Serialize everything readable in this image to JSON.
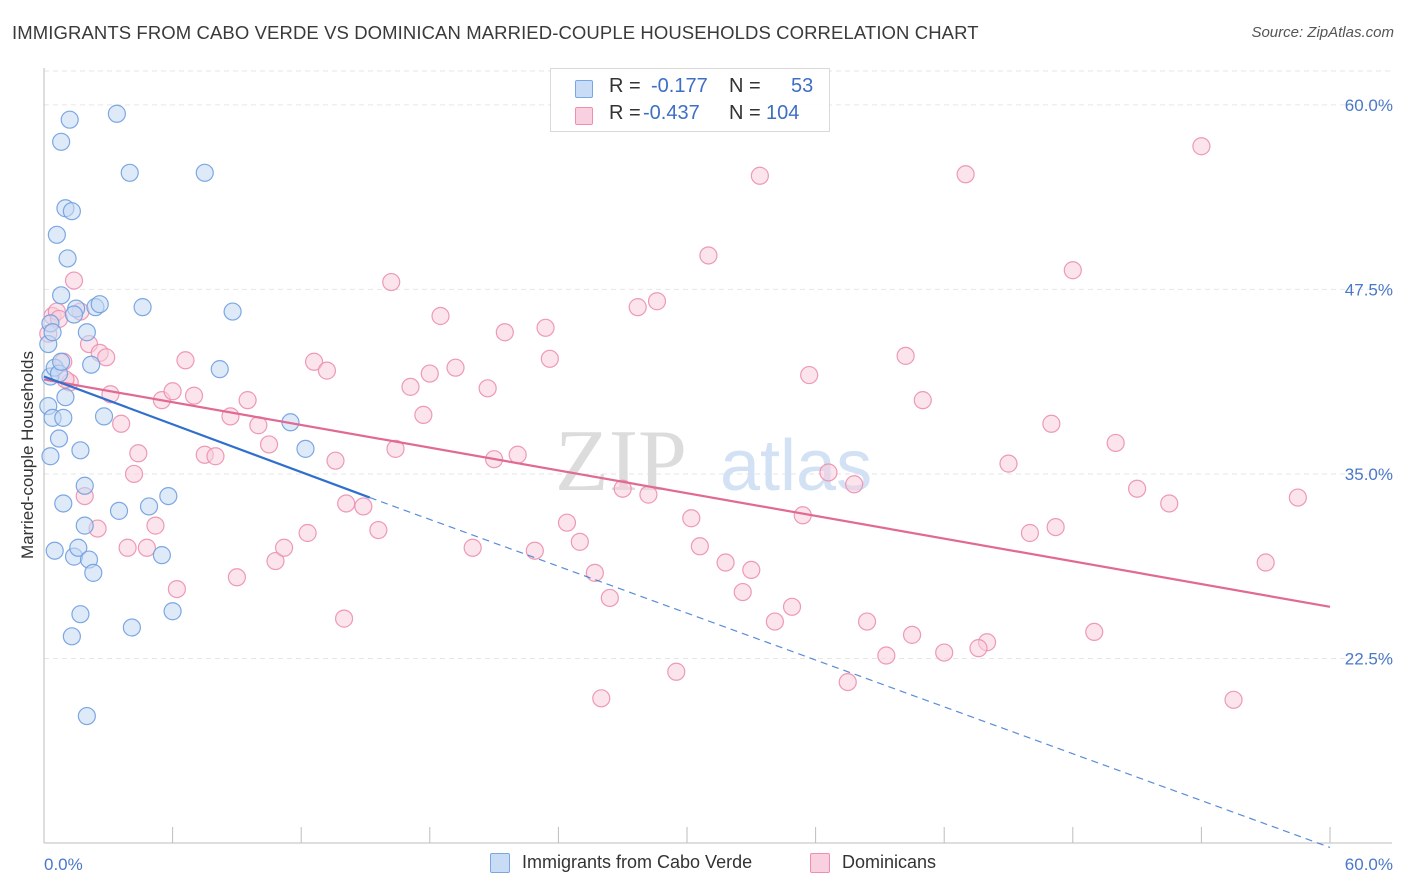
{
  "title": "IMMIGRANTS FROM CABO VERDE VS DOMINICAN MARRIED-COUPLE HOUSEHOLDS CORRELATION CHART",
  "source": "Source: ZipAtlas.com",
  "watermark": {
    "zip": "ZIP",
    "atlas": "atlas"
  },
  "stats": {
    "rows": [
      {
        "r_label": "R =",
        "r_value": "-0.177",
        "n_label": "N =",
        "n_value": "53",
        "color": "#7aa6e6"
      },
      {
        "r_label": "R =",
        "r_value": "-0.437",
        "n_label": "N =",
        "n_value": "104",
        "color": "#ef8fb0"
      }
    ]
  },
  "legend": {
    "items": [
      {
        "label": "Immigrants from Cabo Verde",
        "color": "#7aa6e6"
      },
      {
        "label": "Dominicans",
        "color": "#ef8fb0"
      }
    ]
  },
  "colors": {
    "blue": "#6f9ee0",
    "blue_fill": "#c5d8f4",
    "blue_line": "#2f6fce",
    "pink": "#ec8fae",
    "pink_fill": "#f8cddd",
    "pink_line": "#e06a94",
    "tick": "#4a78c8",
    "grid": "#e6e6e6"
  },
  "chart_data": {
    "type": "scatter",
    "title": "IMMIGRANTS FROM CABO VERDE VS DOMINICAN MARRIED-COUPLE HOUSEHOLDS CORRELATION CHART",
    "xlabel": "",
    "ylabel": "Married-couple Households",
    "xlim": [
      0,
      60
    ],
    "ylim": [
      10,
      62.5
    ],
    "x_tick_labels": [
      "0.0%",
      "60.0%"
    ],
    "y_ticks": [
      22.5,
      35.0,
      47.5,
      60.0
    ],
    "y_tick_labels": [
      "22.5%",
      "35.0%",
      "47.5%",
      "60.0%"
    ],
    "grid": true,
    "series": [
      {
        "name": "Immigrants from Cabo Verde",
        "color": "#6f9ee0",
        "x": [
          0.2,
          0.3,
          0.4,
          0.3,
          0.5,
          0.2,
          0.3,
          0.4,
          0.7,
          0.8,
          0.6,
          1.0,
          1.2,
          1.1,
          0.9,
          0.8,
          1.0,
          0.5,
          0.7,
          0.9,
          1.4,
          1.6,
          1.3,
          1.9,
          2.1,
          2.3,
          3.4,
          4.0,
          7.5,
          1.5,
          2.0,
          2.2,
          2.4,
          2.6,
          1.7,
          1.9,
          1.3,
          4.9,
          5.8,
          4.6,
          5.5,
          6.0,
          8.8,
          8.2,
          11.5,
          12.2,
          3.5,
          1.7,
          2.0,
          2.8,
          4.1,
          1.4,
          0.8
        ],
        "y": [
          43.8,
          45.2,
          44.6,
          41.6,
          42.2,
          39.6,
          36.2,
          38.8,
          41.8,
          57.5,
          51.2,
          53.0,
          59.0,
          49.6,
          38.8,
          42.6,
          40.2,
          29.8,
          37.4,
          33.0,
          29.4,
          30.0,
          24.0,
          31.5,
          29.2,
          28.3,
          59.4,
          55.4,
          55.4,
          46.2,
          44.6,
          42.4,
          46.3,
          46.5,
          36.6,
          34.2,
          52.8,
          32.8,
          33.5,
          46.3,
          29.5,
          25.7,
          46.0,
          42.1,
          38.5,
          36.7,
          32.5,
          25.5,
          18.6,
          38.9,
          24.6,
          45.8,
          47.1
        ]
      },
      {
        "name": "Dominicans",
        "color": "#ec8fae",
        "x": [
          0.2,
          0.4,
          0.6,
          0.7,
          0.9,
          1.2,
          1.4,
          1.7,
          2.1,
          2.6,
          2.9,
          3.1,
          3.6,
          4.2,
          4.4,
          5.2,
          5.5,
          6.0,
          6.6,
          7.0,
          7.5,
          8.0,
          8.7,
          9.5,
          10.0,
          10.8,
          11.2,
          12.3,
          12.6,
          13.2,
          13.6,
          14.1,
          14.9,
          15.6,
          16.4,
          17.1,
          17.7,
          18.5,
          19.2,
          20.0,
          20.7,
          21.5,
          22.1,
          22.9,
          23.6,
          24.4,
          25.0,
          25.7,
          26.4,
          27.0,
          27.7,
          28.6,
          29.5,
          30.2,
          31.0,
          31.8,
          32.6,
          33.4,
          34.1,
          34.9,
          35.7,
          36.6,
          37.5,
          38.4,
          39.3,
          40.2,
          41.0,
          42.0,
          43.0,
          44.0,
          45.0,
          46.0,
          47.0,
          48.0,
          49.0,
          50.0,
          51.0,
          52.5,
          54.0,
          55.5,
          57.0,
          58.5,
          14.0,
          9.0,
          6.2,
          3.9,
          2.5,
          1.9,
          10.5,
          16.2,
          18.0,
          21.0,
          23.4,
          26.0,
          28.2,
          30.6,
          33.0,
          35.4,
          37.8,
          40.5,
          43.6,
          47.2,
          1.0,
          4.8
        ],
        "y": [
          44.5,
          45.7,
          46.0,
          45.5,
          42.6,
          41.2,
          48.1,
          46.0,
          43.8,
          43.2,
          42.9,
          40.4,
          38.4,
          35.0,
          36.4,
          31.5,
          40.0,
          40.6,
          42.7,
          40.3,
          36.3,
          36.2,
          38.9,
          40.0,
          38.3,
          29.1,
          30.0,
          31.0,
          42.6,
          42.0,
          35.9,
          33.0,
          32.8,
          31.2,
          36.7,
          40.9,
          39.0,
          45.7,
          42.2,
          30.0,
          40.8,
          44.6,
          36.3,
          29.8,
          42.8,
          31.7,
          30.4,
          28.3,
          26.6,
          34.0,
          46.3,
          46.7,
          21.6,
          32.0,
          49.8,
          29.0,
          27.0,
          55.2,
          25.0,
          26.0,
          41.7,
          35.1,
          20.9,
          25.0,
          22.7,
          43.0,
          40.0,
          22.9,
          55.3,
          23.6,
          35.7,
          31.0,
          38.4,
          48.8,
          24.3,
          37.1,
          34.0,
          33.0,
          57.2,
          19.7,
          29.0,
          33.4,
          25.2,
          28.0,
          27.2,
          30.0,
          31.3,
          33.5,
          37.0,
          48.0,
          41.8,
          36.0,
          44.9,
          19.8,
          33.6,
          30.1,
          28.5,
          32.2,
          34.3,
          24.1,
          23.2,
          31.4,
          41.4,
          30.0
        ]
      }
    ],
    "trend_lines": [
      {
        "series": "Immigrants from Cabo Verde",
        "x": [
          0,
          15.2
        ],
        "y": [
          41.6,
          33.4
        ],
        "style": "solid",
        "extended_x": [
          15.2,
          60
        ],
        "extended_y": [
          33.4,
          9.7
        ],
        "extended_style": "dashed"
      },
      {
        "series": "Dominicans",
        "x": [
          0,
          60
        ],
        "y": [
          41.4,
          26.0
        ],
        "style": "solid"
      }
    ]
  }
}
